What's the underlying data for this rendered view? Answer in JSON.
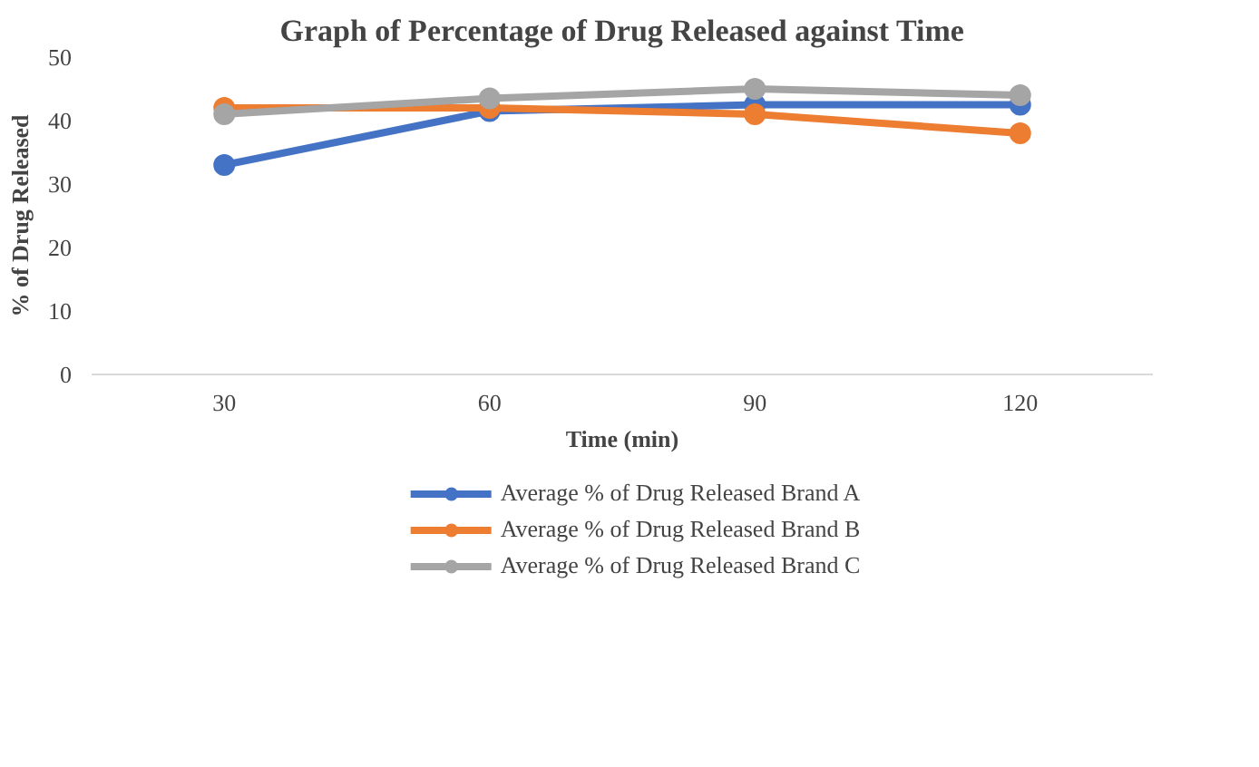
{
  "chart_data": {
    "type": "line",
    "title": "Graph of Percentage of Drug Released against Time",
    "xlabel": "Time (min)",
    "ylabel": "% of Drug Released",
    "categories": [
      "30",
      "60",
      "90",
      "120"
    ],
    "series": [
      {
        "name": "Average % of Drug Released Brand A",
        "color": "#4472c4",
        "values": [
          33,
          41.5,
          42.5,
          42.5
        ]
      },
      {
        "name": "Average % of Drug Released Brand B",
        "color": "#ed7d31",
        "values": [
          42,
          42,
          41,
          38
        ]
      },
      {
        "name": "Average % of Drug Released Brand C",
        "color": "#a5a5a5",
        "values": [
          41,
          43.5,
          45,
          44
        ]
      }
    ],
    "ylim": [
      0,
      50
    ],
    "yticks": [
      0,
      10,
      20,
      30,
      40,
      50
    ],
    "grid": false,
    "legend": "bottom",
    "marker": "circle",
    "line_style": "solid"
  }
}
